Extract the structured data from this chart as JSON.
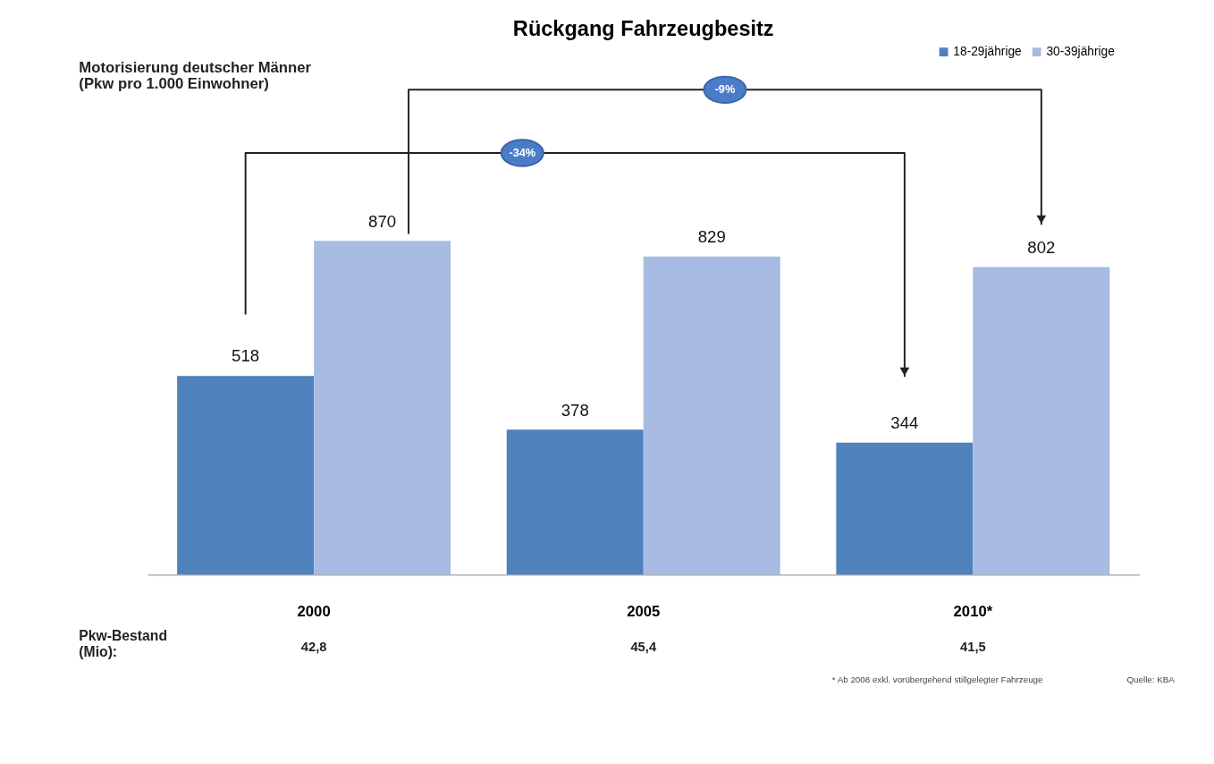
{
  "chart_data": {
    "type": "bar",
    "title": "Rückgang Fahrzeugbesitz",
    "categories": [
      "2000",
      "2005",
      "2010*"
    ],
    "series": [
      {
        "name": "18-29jährige",
        "color": "#4f81bd",
        "values": [
          518,
          378,
          344
        ]
      },
      {
        "name": "30-39jährige",
        "color": "#a7bbe3",
        "values": [
          870,
          829,
          802
        ]
      }
    ],
    "data_labels": true,
    "legend": "top right",
    "annotations": [
      "-34%",
      "-9%",
      "Motorisierung deutscher Männer\n(Pkw pro 1.000 Einwohner)",
      "Pkw-Bestand\n(Mio):",
      "42,8",
      "45,4",
      "41,5",
      "* Ab 2008 exkl. vorübergehend stillgelegter Fahrzeuge",
      "Quelle: KBA"
    ]
  }
}
